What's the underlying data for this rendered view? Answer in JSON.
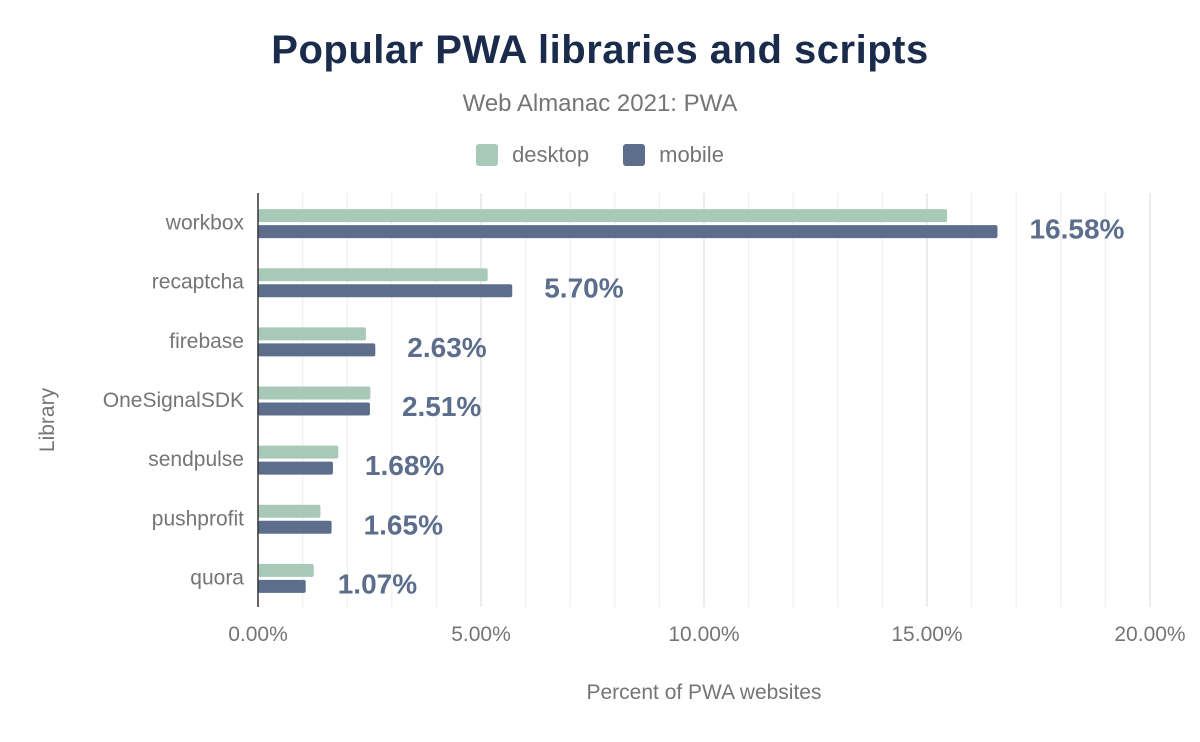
{
  "header": {
    "title": "Popular PWA libraries and scripts",
    "subtitle": "Web Almanac 2021: PWA"
  },
  "legend": [
    {
      "label": "desktop",
      "color": "#a8c9b8"
    },
    {
      "label": "mobile",
      "color": "#5c6e8c"
    }
  ],
  "chart_data": {
    "type": "bar",
    "orientation": "horizontal",
    "title": "Popular PWA libraries and scripts",
    "subtitle": "Web Almanac 2021: PWA",
    "xlabel": "Percent of PWA websites",
    "ylabel": "Library",
    "categories": [
      "workbox",
      "recaptcha",
      "firebase",
      "OneSignalSDK",
      "sendpulse",
      "pushprofit",
      "quora"
    ],
    "series": [
      {
        "name": "desktop",
        "color": "#a8c9b8",
        "values": [
          15.45,
          5.15,
          2.42,
          2.52,
          1.8,
          1.4,
          1.25
        ]
      },
      {
        "name": "mobile",
        "color": "#5c6e8c",
        "values": [
          16.58,
          5.7,
          2.63,
          2.51,
          1.68,
          1.65,
          1.07
        ]
      }
    ],
    "data_labels": [
      "16.58%",
      "5.70%",
      "2.63%",
      "2.51%",
      "1.68%",
      "1.65%",
      "1.07%"
    ],
    "xlim": [
      0,
      20
    ],
    "xticks": [
      0,
      5,
      10,
      15,
      20
    ],
    "xtick_labels": [
      "0.00%",
      "5.00%",
      "10.00%",
      "15.00%",
      "20.00%"
    ],
    "grid": true,
    "legend_position": "top-center"
  }
}
